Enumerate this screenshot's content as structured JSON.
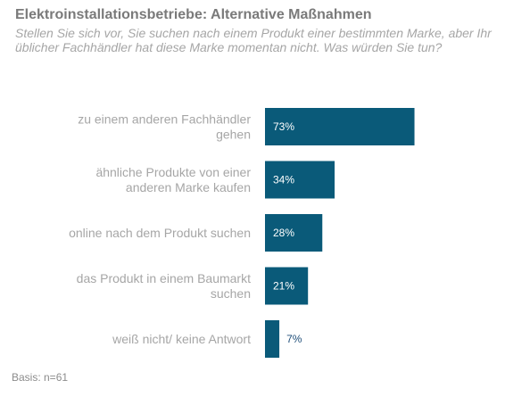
{
  "title": "Elektroinstallationsbetriebe: Alternative Maßnahmen",
  "subtitle": "Stellen Sie sich vor, Sie suchen nach einem Produkt einer bestimmten Marke, aber Ihr üblicher Fachhändler hat diese Marke momentan nicht. Was würden Sie tun?",
  "footnote": "Basis: n=61",
  "chart_data": {
    "type": "bar",
    "orientation": "horizontal",
    "categories": [
      [
        "zu einem anderen Fachhändler",
        "gehen"
      ],
      [
        "ähnliche Produkte von einer",
        "anderen Marke kaufen"
      ],
      [
        "online nach dem Produkt suchen"
      ],
      [
        "das Produkt in einem Baumarkt",
        "suchen"
      ],
      [
        "weiß nicht/ keine Antwort"
      ]
    ],
    "values": [
      73,
      34,
      28,
      21,
      7
    ],
    "value_labels": [
      "73%",
      "34%",
      "28%",
      "21%",
      "7%"
    ],
    "xlim": [
      0,
      100
    ],
    "grid": false,
    "bar_color": "#0a5a79",
    "label_inside_color": "#ffffff",
    "label_outside_color": "#1f4e79"
  }
}
